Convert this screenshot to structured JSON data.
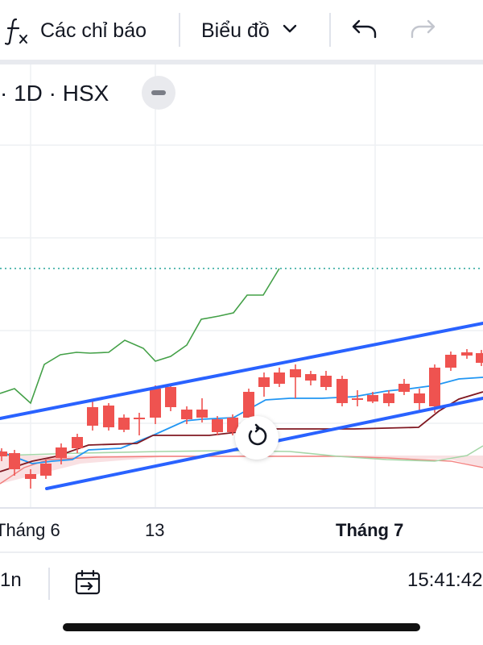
{
  "toolbar": {
    "indicators_label": "Các chỉ báo",
    "chart_type_label": "Biểu đồ",
    "icons": [
      "function-fx-icon",
      "chevron-down-icon",
      "undo-icon",
      "redo-icon"
    ]
  },
  "symbol": {
    "legend": "· 1D · HSX"
  },
  "colors": {
    "up": "#26a69a",
    "down": "#ef5350",
    "trend_line": "#2962ff",
    "lagging_line": "#43a047",
    "conversion_line": "#2196f3",
    "base_line": "#801922",
    "cloud": "#f7d9dc"
  },
  "chart_data": {
    "type": "candlestick",
    "x_tick_labels": [
      "Tháng 6",
      "13",
      "Tháng 7"
    ],
    "overlays": [
      "ichimoku-cloud",
      "trend-channel",
      "dotted-price-line"
    ]
  },
  "bottom": {
    "interval": "1n",
    "time": "15:41:42"
  }
}
